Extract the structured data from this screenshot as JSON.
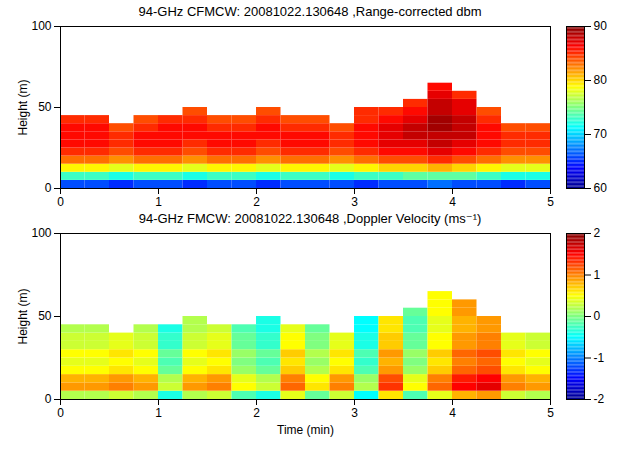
{
  "chart_data": [
    {
      "type": "heatmap",
      "title": "94-GHz CFMCW: 20081022.130648 ,Range-corrected dbm",
      "ylabel": "Height (m)",
      "xlim": [
        0,
        5
      ],
      "xticks": [
        0,
        1,
        2,
        3,
        4,
        5
      ],
      "ylim": [
        0,
        100
      ],
      "yticks": [
        0,
        50,
        100
      ],
      "time_edges": [
        0,
        0.25,
        0.5,
        0.75,
        1,
        1.25,
        1.5,
        1.75,
        2,
        2.25,
        2.5,
        2.75,
        3,
        3.25,
        3.5,
        3.75,
        4,
        4.25,
        4.5,
        4.75,
        5
      ],
      "height_edges": [
        0,
        5,
        10,
        15,
        20,
        25,
        30,
        35,
        40,
        45,
        50,
        55,
        60,
        65
      ],
      "cells": [
        [
          66,
          66,
          65,
          66,
          66,
          65,
          66,
          66,
          65,
          66,
          66,
          66,
          65,
          66,
          66,
          67,
          66,
          66,
          65,
          66
        ],
        [
          73,
          73,
          72,
          73,
          73,
          72,
          73,
          73,
          72,
          73,
          73,
          72,
          73,
          73,
          74,
          74,
          74,
          73,
          72,
          72
        ],
        [
          79,
          79,
          78,
          79,
          79,
          78,
          79,
          79,
          78,
          79,
          79,
          78,
          79,
          80,
          80,
          81,
          80,
          79,
          78,
          78
        ],
        [
          83,
          83,
          82,
          83,
          83,
          82,
          83,
          83,
          82,
          83,
          83,
          82,
          83,
          84,
          84,
          85,
          84,
          83,
          82,
          82
        ],
        [
          85,
          85,
          84,
          85,
          85,
          84,
          85,
          85,
          84,
          85,
          85,
          84,
          85,
          86,
          86,
          87,
          86,
          85,
          84,
          84
        ],
        [
          86,
          86,
          85,
          86,
          86,
          85,
          86,
          86,
          85,
          86,
          86,
          85,
          86,
          87,
          87,
          88,
          87,
          86,
          85,
          85
        ],
        [
          86,
          86,
          85,
          86,
          86,
          86,
          86,
          86,
          86,
          86,
          86,
          85,
          86,
          87,
          88,
          88,
          88,
          86,
          85,
          85
        ],
        [
          86,
          86,
          84,
          85,
          86,
          86,
          85,
          85,
          86,
          85,
          85,
          84,
          86,
          87,
          88,
          89,
          88,
          86,
          84,
          84
        ],
        [
          85,
          85,
          null,
          84,
          85,
          85,
          84,
          84,
          85,
          84,
          84,
          null,
          85,
          86,
          87,
          89,
          88,
          85,
          null,
          null
        ],
        [
          null,
          null,
          null,
          null,
          null,
          84,
          null,
          null,
          84,
          null,
          null,
          null,
          85,
          85,
          86,
          88,
          87,
          84,
          null,
          null
        ],
        [
          null,
          null,
          null,
          null,
          null,
          null,
          null,
          null,
          null,
          null,
          null,
          null,
          null,
          null,
          85,
          88,
          87,
          null,
          null,
          null
        ],
        [
          null,
          null,
          null,
          null,
          null,
          null,
          null,
          null,
          null,
          null,
          null,
          null,
          null,
          null,
          null,
          87,
          85,
          null,
          null,
          null
        ],
        [
          null,
          null,
          null,
          null,
          null,
          null,
          null,
          null,
          null,
          null,
          null,
          null,
          null,
          null,
          null,
          86,
          null,
          null,
          null,
          null
        ]
      ],
      "colorbar_range": [
        60,
        90
      ],
      "colorbar_ticks": [
        60,
        70,
        80,
        90
      ]
    },
    {
      "type": "heatmap",
      "title": "94-GHz FMCW: 20081022.130648 ,Doppler Velocity (ms⁻¹)",
      "xlabel": "Time (min)",
      "ylabel": "Height (m)",
      "xlim": [
        0,
        5
      ],
      "xticks": [
        0,
        1,
        2,
        3,
        4,
        5
      ],
      "ylim": [
        0,
        100
      ],
      "yticks": [
        0,
        50,
        100
      ],
      "time_edges": [
        0,
        0.25,
        0.5,
        0.75,
        1,
        1.25,
        1.5,
        1.75,
        2,
        2.25,
        2.5,
        2.75,
        3,
        3.25,
        3.5,
        3.75,
        4,
        4.25,
        4.5,
        4.75,
        5
      ],
      "height_edges": [
        0,
        5,
        10,
        15,
        20,
        25,
        30,
        35,
        40,
        45,
        50,
        55,
        60,
        65
      ],
      "cells": [
        [
          0.2,
          0.2,
          0.3,
          0.2,
          -0.4,
          0.2,
          0.3,
          -0.2,
          -0.4,
          0.4,
          -0.1,
          0.3,
          -0.5,
          0.6,
          -0.2,
          0.4,
          0.8,
          0.9,
          0.3,
          0.2
        ],
        [
          0.9,
          0.9,
          1.0,
          0.9,
          0.3,
          0.9,
          1.0,
          0.5,
          0.3,
          1.1,
          0.6,
          1.0,
          0.2,
          1.3,
          0.5,
          1.1,
          1.5,
          1.6,
          1.0,
          0.9
        ],
        [
          0.8,
          0.8,
          0.9,
          0.8,
          0.2,
          0.8,
          0.9,
          0.4,
          0.2,
          1.0,
          0.5,
          0.9,
          0.1,
          1.2,
          0.4,
          1.0,
          1.4,
          1.5,
          0.9,
          0.8
        ],
        [
          0.5,
          0.5,
          0.6,
          0.5,
          -0.1,
          0.5,
          0.6,
          0.1,
          -0.1,
          0.7,
          0.2,
          0.6,
          -0.2,
          0.9,
          0.1,
          0.7,
          1.1,
          1.2,
          0.6,
          0.5
        ],
        [
          0.4,
          0.4,
          0.5,
          0.4,
          -0.2,
          0.4,
          0.5,
          0,
          -0.2,
          0.6,
          0.1,
          0.5,
          -0.3,
          0.8,
          0,
          0.6,
          1.0,
          1.1,
          0.5,
          0.4
        ],
        [
          0.5,
          0.5,
          0.6,
          0.5,
          -0.1,
          0.5,
          0.6,
          0.1,
          -0.1,
          0.7,
          0.2,
          0.6,
          -0.2,
          0.9,
          0.1,
          0.7,
          1.1,
          1.2,
          0.6,
          0.5
        ],
        [
          0.3,
          0.3,
          0.4,
          0.3,
          -0.3,
          0.3,
          0.4,
          -0.1,
          -0.3,
          0.5,
          0,
          0.4,
          -0.4,
          0.7,
          -0.1,
          0.5,
          0.9,
          1.0,
          0.4,
          0.3
        ],
        [
          0.3,
          0.3,
          0.4,
          0.3,
          -0.3,
          0.3,
          0.4,
          -0.1,
          -0.3,
          0.5,
          0,
          0.4,
          -0.4,
          0.7,
          -0.1,
          0.5,
          0.9,
          1.0,
          0.4,
          0.3
        ],
        [
          0.2,
          0.2,
          null,
          0.2,
          -0.4,
          0.2,
          0.3,
          -0.2,
          -0.4,
          0.4,
          -0.1,
          null,
          -0.5,
          0.6,
          -0.2,
          0.4,
          0.8,
          0.9,
          null,
          null
        ],
        [
          null,
          null,
          null,
          null,
          null,
          0.2,
          null,
          null,
          -0.4,
          null,
          null,
          null,
          -0.5,
          0.6,
          -0.2,
          0.4,
          0.8,
          0.9,
          null,
          null
        ],
        [
          null,
          null,
          null,
          null,
          null,
          null,
          null,
          null,
          null,
          null,
          null,
          null,
          null,
          null,
          -0.1,
          0.5,
          0.9,
          null,
          null,
          null
        ],
        [
          null,
          null,
          null,
          null,
          null,
          null,
          null,
          null,
          null,
          null,
          null,
          null,
          null,
          null,
          null,
          0.5,
          0.9,
          null,
          null,
          null
        ],
        [
          null,
          null,
          null,
          null,
          null,
          null,
          null,
          null,
          null,
          null,
          null,
          null,
          null,
          null,
          null,
          0.5,
          null,
          null,
          null,
          null
        ]
      ],
      "colorbar_range": [
        -2,
        2
      ],
      "colorbar_ticks": [
        -2,
        -1,
        0,
        1,
        2
      ]
    }
  ]
}
